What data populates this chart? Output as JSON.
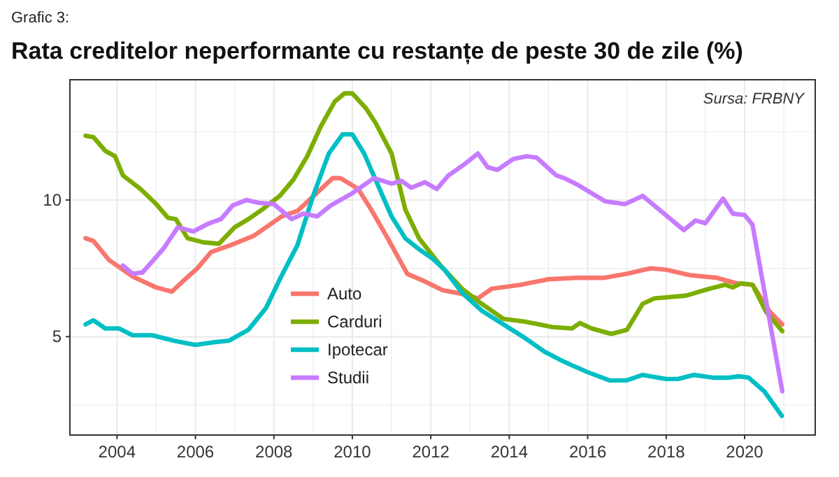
{
  "chart_data": {
    "type": "line",
    "title": "Rata creditelor neperformante cu restanțe de peste 30 de zile (%)",
    "annotations": [
      "Grafic 3:",
      "Sursa: FRBNY"
    ],
    "xlim": [
      2002.8,
      2021.8
    ],
    "xticks": [
      2004,
      {
        "value": 2005,
        "label": null
      },
      2006,
      {
        "value": 2007,
        "label": null
      },
      2008,
      {
        "value": 2009,
        "label": null
      },
      2010,
      {
        "value": 2011,
        "label": null
      },
      2012,
      {
        "value": 2013,
        "label": null
      },
      2014,
      {
        "value": 2015,
        "label": null
      },
      2016,
      {
        "value": 2017,
        "label": null
      },
      2018,
      {
        "value": 2019,
        "label": null
      },
      2020,
      {
        "value": 2021,
        "label": null
      }
    ],
    "ylim": [
      1.4,
      14.4
    ],
    "yticks": [
      {
        "value": 2.5,
        "label": null
      },
      5,
      {
        "value": 7.5,
        "label": null
      },
      10,
      {
        "value": 12.5,
        "label": null
      }
    ],
    "grid": true,
    "legend": "bottom left",
    "line_style": "solid",
    "marker": "none",
    "series": [
      {
        "name": "Auto",
        "color": "#f8766d",
        "x": [
          2003.2,
          2003.4,
          2003.8,
          2004.4,
          2005,
          2005.4,
          2005.7,
          2006.05,
          2006.4,
          2006.9,
          2007.5,
          2008.2,
          2008.6,
          2009.2,
          2009.5,
          2009.7,
          2010.15,
          2010.5,
          2010.9,
          2011.4,
          2011.8,
          2012.3,
          2012.85,
          2013.2,
          2013.55,
          2014.3,
          2015,
          2015.7,
          2016.4,
          2017,
          2017.6,
          2018,
          2018.6,
          2019.3,
          2019.8,
          2020.2,
          2020.65,
          2020.96
        ],
        "values": [
          8.6,
          8.5,
          7.8,
          7.2,
          6.8,
          6.65,
          7.05,
          7.5,
          8.1,
          8.35,
          8.7,
          9.4,
          9.6,
          10.4,
          10.8,
          10.8,
          10.4,
          9.6,
          8.6,
          7.3,
          7.05,
          6.7,
          6.55,
          6.4,
          6.75,
          6.9,
          7.1,
          7.15,
          7.15,
          7.3,
          7.5,
          7.45,
          7.25,
          7.15,
          6.95,
          6.9,
          5.9,
          5.45
        ]
      },
      {
        "name": "Carduri",
        "color": "#7cae00",
        "x": [
          2003.2,
          2003.4,
          2003.7,
          2003.95,
          2004.15,
          2004.6,
          2005,
          2005.3,
          2005.5,
          2005.8,
          2006.2,
          2006.6,
          2007,
          2007.35,
          2007.7,
          2008.15,
          2008.5,
          2008.85,
          2009.2,
          2009.55,
          2009.8,
          2010,
          2010.35,
          2010.6,
          2011,
          2011.35,
          2011.7,
          2012.25,
          2012.8,
          2013.3,
          2013.85,
          2014.4,
          2015.1,
          2015.6,
          2015.8,
          2016.1,
          2016.6,
          2017,
          2017.4,
          2017.7,
          2018.5,
          2019.1,
          2019.5,
          2019.7,
          2019.9,
          2020.2,
          2020.55,
          2020.96
        ],
        "values": [
          12.35,
          12.3,
          11.8,
          11.6,
          10.9,
          10.4,
          9.85,
          9.35,
          9.3,
          8.6,
          8.45,
          8.4,
          9.0,
          9.3,
          9.65,
          10.15,
          10.75,
          11.6,
          12.7,
          13.6,
          13.9,
          13.9,
          13.35,
          12.8,
          11.7,
          9.65,
          8.6,
          7.6,
          6.75,
          6.2,
          5.65,
          5.55,
          5.35,
          5.3,
          5.5,
          5.3,
          5.1,
          5.25,
          6.2,
          6.4,
          6.5,
          6.75,
          6.9,
          6.8,
          6.95,
          6.9,
          5.9,
          5.2
        ]
      },
      {
        "name": "Ipotecar",
        "color": "#00bfc4",
        "x": [
          2003.2,
          2003.4,
          2003.7,
          2004.05,
          2004.4,
          2004.9,
          2005.45,
          2006,
          2006.5,
          2006.85,
          2007.35,
          2007.8,
          2008.15,
          2008.6,
          2009,
          2009.4,
          2009.75,
          2010,
          2010.3,
          2010.65,
          2011,
          2011.35,
          2011.7,
          2012.05,
          2012.35,
          2012.8,
          2013.3,
          2013.85,
          2014.4,
          2014.9,
          2015.3,
          2015.6,
          2016,
          2016.55,
          2017,
          2017.4,
          2018,
          2018.3,
          2018.7,
          2019.2,
          2019.6,
          2019.85,
          2020.1,
          2020.5,
          2020.95
        ],
        "values": [
          5.45,
          5.6,
          5.3,
          5.3,
          5.05,
          5.05,
          4.85,
          4.7,
          4.8,
          4.85,
          5.25,
          6.05,
          7.1,
          8.35,
          10.15,
          11.7,
          12.4,
          12.4,
          11.7,
          10.55,
          9.4,
          8.6,
          8.2,
          7.85,
          7.45,
          6.6,
          5.95,
          5.45,
          4.95,
          4.45,
          4.15,
          3.95,
          3.7,
          3.4,
          3.4,
          3.6,
          3.45,
          3.45,
          3.6,
          3.5,
          3.5,
          3.55,
          3.5,
          3.0,
          2.1
        ]
      },
      {
        "name": "Studii",
        "color": "#c77cff",
        "x": [
          2004.15,
          2004.4,
          2004.65,
          2004.9,
          2005.2,
          2005.55,
          2005.95,
          2006.35,
          2006.65,
          2006.95,
          2007.3,
          2007.6,
          2008,
          2008.45,
          2008.75,
          2009.1,
          2009.45,
          2010,
          2010.55,
          2011,
          2011.25,
          2011.5,
          2011.85,
          2012.15,
          2012.45,
          2012.85,
          2013.2,
          2013.45,
          2013.7,
          2014.1,
          2014.45,
          2014.7,
          2015.2,
          2015.4,
          2015.75,
          2016.45,
          2016.95,
          2017.4,
          2018.45,
          2018.75,
          2019,
          2019.45,
          2019.7,
          2020,
          2020.2,
          2020.96
        ],
        "values": [
          7.6,
          7.3,
          7.35,
          7.75,
          8.25,
          9.0,
          8.85,
          9.15,
          9.3,
          9.8,
          10.0,
          9.9,
          9.85,
          9.3,
          9.5,
          9.4,
          9.8,
          10.25,
          10.8,
          10.6,
          10.7,
          10.45,
          10.65,
          10.4,
          10.9,
          11.3,
          11.7,
          11.2,
          11.1,
          11.5,
          11.6,
          11.55,
          10.9,
          10.8,
          10.55,
          9.95,
          9.85,
          10.15,
          8.9,
          9.25,
          9.15,
          10.05,
          9.5,
          9.45,
          9.1,
          3.0
        ]
      }
    ]
  }
}
